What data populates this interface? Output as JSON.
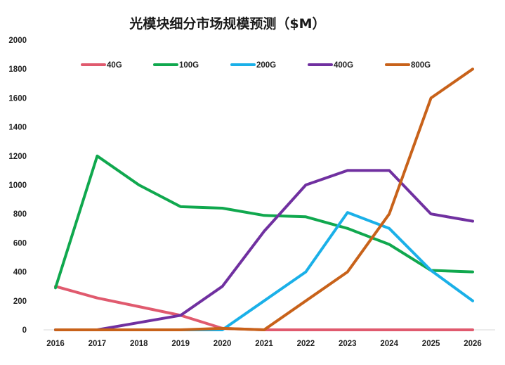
{
  "chart_data": {
    "type": "line",
    "title": "光模块细分市场规模预测（$M）",
    "xlabel": "",
    "ylabel": "",
    "x": [
      "2016",
      "2017",
      "2018",
      "2019",
      "2020",
      "2021",
      "2022",
      "2023",
      "2024",
      "2025",
      "2026"
    ],
    "ylim": [
      0,
      2000
    ],
    "yticks": [
      "0",
      "200",
      "400",
      "600",
      "800",
      "1000",
      "1200",
      "1400",
      "1600",
      "1800",
      "2000"
    ],
    "grid": false,
    "legend_position": "top",
    "series": [
      {
        "name": "40G",
        "color": "#e05a6e",
        "values": [
          300,
          220,
          160,
          100,
          10,
          0,
          0,
          0,
          0,
          0,
          0
        ]
      },
      {
        "name": "100G",
        "color": "#10a84e",
        "values": [
          290,
          1200,
          1000,
          850,
          840,
          790,
          780,
          700,
          590,
          410,
          400
        ]
      },
      {
        "name": "200G",
        "color": "#1ab0e8",
        "values": [
          0,
          0,
          0,
          0,
          0,
          200,
          400,
          810,
          700,
          410,
          200
        ]
      },
      {
        "name": "400G",
        "color": "#7030a0",
        "values": [
          0,
          0,
          50,
          100,
          300,
          680,
          1000,
          1100,
          1100,
          800,
          750
        ]
      },
      {
        "name": "800G",
        "color": "#c8621a",
        "values": [
          0,
          0,
          0,
          0,
          10,
          0,
          200,
          400,
          800,
          1600,
          1800
        ]
      }
    ]
  }
}
